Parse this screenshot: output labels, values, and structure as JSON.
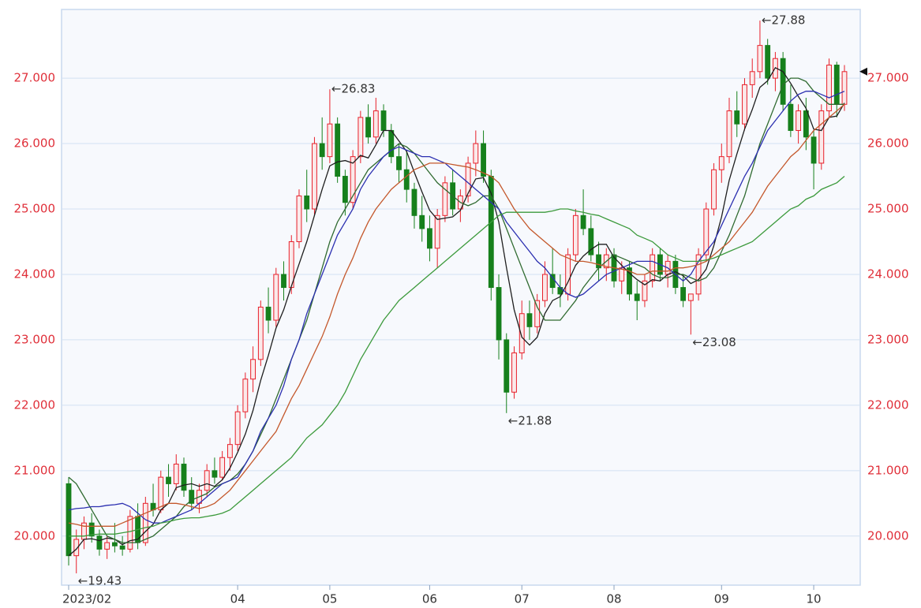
{
  "chart_data": {
    "type": "candlestick",
    "categories": [
      "2023/02",
      null,
      null,
      null,
      null,
      null,
      null,
      null,
      null,
      null,
      null,
      null,
      null,
      null,
      null,
      null,
      null,
      null,
      null,
      null,
      null,
      null,
      "04",
      null,
      null,
      null,
      null,
      null,
      null,
      null,
      null,
      null,
      null,
      null,
      "05",
      null,
      null,
      null,
      null,
      null,
      null,
      null,
      null,
      null,
      null,
      null,
      null,
      "06",
      null,
      null,
      null,
      null,
      null,
      null,
      null,
      null,
      null,
      null,
      null,
      "07",
      null,
      null,
      null,
      null,
      null,
      null,
      null,
      null,
      null,
      null,
      null,
      "08",
      null,
      null,
      null,
      null,
      null,
      null,
      null,
      null,
      null,
      null,
      null,
      null,
      null,
      "09",
      null,
      null,
      null,
      null,
      null,
      null,
      null,
      null,
      null,
      null,
      null,
      "10",
      null,
      null,
      null,
      null
    ],
    "open": [
      20.8,
      19.7,
      19.95,
      20.2,
      20.0,
      19.8,
      19.9,
      19.85,
      19.8,
      20.3,
      19.9,
      20.5,
      20.4,
      20.9,
      20.8,
      21.1,
      20.7,
      20.5,
      20.7,
      21.0,
      20.9,
      21.2,
      21.4,
      21.9,
      22.4,
      22.7,
      23.5,
      23.3,
      24.0,
      23.8,
      24.5,
      25.2,
      25.0,
      26.0,
      25.8,
      26.3,
      25.5,
      25.1,
      25.8,
      26.4,
      26.1,
      26.5,
      26.2,
      25.8,
      25.6,
      25.3,
      24.9,
      24.7,
      24.4,
      24.9,
      25.4,
      25.0,
      25.2,
      25.7,
      26.0,
      25.5,
      23.8,
      23.0,
      22.2,
      22.8,
      23.4,
      23.2,
      23.6,
      24.0,
      23.8,
      23.7,
      24.3,
      24.9,
      24.7,
      24.3,
      24.1,
      24.3,
      23.9,
      24.1,
      23.7,
      23.6,
      23.9,
      24.3,
      24.0,
      24.2,
      23.8,
      23.6,
      23.7,
      24.3,
      25.0,
      25.6,
      25.8,
      26.5,
      26.3,
      26.9,
      27.1,
      27.5,
      27.0,
      27.3,
      26.6,
      26.2,
      26.5,
      26.1,
      25.7,
      26.5,
      27.2,
      26.6
    ],
    "high": [
      20.9,
      20.1,
      20.3,
      20.35,
      20.1,
      20.0,
      20.2,
      20.0,
      20.4,
      20.5,
      20.6,
      20.8,
      21.0,
      21.1,
      21.25,
      21.2,
      20.9,
      20.8,
      21.1,
      21.2,
      21.3,
      21.5,
      22.0,
      22.5,
      22.9,
      23.6,
      23.8,
      24.1,
      24.2,
      24.6,
      25.3,
      25.6,
      26.1,
      26.4,
      26.83,
      26.4,
      25.6,
      25.9,
      26.5,
      26.6,
      26.7,
      26.6,
      26.3,
      26.0,
      25.9,
      25.4,
      25.2,
      24.9,
      25.0,
      25.5,
      25.6,
      25.3,
      25.8,
      26.2,
      26.2,
      25.6,
      24.0,
      23.1,
      22.9,
      23.6,
      23.6,
      23.7,
      24.2,
      24.4,
      24.0,
      24.4,
      25.0,
      25.3,
      24.9,
      24.5,
      24.4,
      24.4,
      24.2,
      24.2,
      23.9,
      24.0,
      24.4,
      24.4,
      24.3,
      24.3,
      24.0,
      23.7,
      24.4,
      25.1,
      25.7,
      26.0,
      26.7,
      26.8,
      27.0,
      27.3,
      27.88,
      27.6,
      27.4,
      27.4,
      26.9,
      26.6,
      26.7,
      26.2,
      26.6,
      27.3,
      27.25,
      27.2
    ],
    "low": [
      19.55,
      19.43,
      19.8,
      19.9,
      19.7,
      19.65,
      19.75,
      19.7,
      19.75,
      19.8,
      19.85,
      20.3,
      20.35,
      20.6,
      20.7,
      20.6,
      20.4,
      20.35,
      20.6,
      20.8,
      20.85,
      21.0,
      21.3,
      21.8,
      22.2,
      22.6,
      23.1,
      23.2,
      23.6,
      23.7,
      24.4,
      24.8,
      24.9,
      25.6,
      25.7,
      25.4,
      24.9,
      25.0,
      25.7,
      26.0,
      26.0,
      26.1,
      25.7,
      25.4,
      25.1,
      24.7,
      24.5,
      24.2,
      24.1,
      24.8,
      24.9,
      24.8,
      25.1,
      25.5,
      25.4,
      23.6,
      22.7,
      21.88,
      22.1,
      22.7,
      23.0,
      23.1,
      23.5,
      23.7,
      23.5,
      23.6,
      24.2,
      24.6,
      24.2,
      23.9,
      23.9,
      23.8,
      23.7,
      23.6,
      23.3,
      23.5,
      23.8,
      23.9,
      23.8,
      23.7,
      23.5,
      23.08,
      23.6,
      24.2,
      24.9,
      25.4,
      25.7,
      26.1,
      26.2,
      26.7,
      27.0,
      26.9,
      26.8,
      26.5,
      26.1,
      26.0,
      25.9,
      25.3,
      25.6,
      26.4,
      26.4,
      26.5
    ],
    "close": [
      19.7,
      19.95,
      20.2,
      20.0,
      19.8,
      19.9,
      19.85,
      19.8,
      20.3,
      19.9,
      20.5,
      20.4,
      20.9,
      20.8,
      21.1,
      20.7,
      20.5,
      20.7,
      21.0,
      20.9,
      21.2,
      21.4,
      21.9,
      22.4,
      22.7,
      23.5,
      23.3,
      24.0,
      23.8,
      24.5,
      25.2,
      25.0,
      26.0,
      25.8,
      26.3,
      25.5,
      25.1,
      25.8,
      26.4,
      26.1,
      26.5,
      26.2,
      25.8,
      25.6,
      25.3,
      24.9,
      24.7,
      24.4,
      24.9,
      25.4,
      25.0,
      25.2,
      25.7,
      26.0,
      25.5,
      23.8,
      23.0,
      22.2,
      22.8,
      23.4,
      23.2,
      23.6,
      24.0,
      23.8,
      23.7,
      24.3,
      24.9,
      24.7,
      24.3,
      24.1,
      24.3,
      23.9,
      24.1,
      23.7,
      23.6,
      23.9,
      24.3,
      24.0,
      24.2,
      23.8,
      23.6,
      23.7,
      24.3,
      25.0,
      25.6,
      25.8,
      26.5,
      26.3,
      26.9,
      27.1,
      27.5,
      27.0,
      27.3,
      26.6,
      26.2,
      26.5,
      26.1,
      25.7,
      26.5,
      27.2,
      26.6,
      27.1
    ],
    "up_color": "#e8202a",
    "down_color": "#16801c",
    "series": [
      {
        "color": "#1e1e1e",
        "values": [
          19.7,
          19.8,
          19.95,
          19.96,
          19.93,
          19.97,
          19.95,
          19.87,
          19.93,
          19.95,
          20.07,
          20.18,
          20.4,
          20.5,
          20.74,
          20.78,
          20.8,
          20.76,
          20.8,
          20.76,
          20.86,
          21.04,
          21.28,
          21.56,
          21.92,
          22.38,
          22.76,
          23.18,
          23.46,
          23.82,
          24.16,
          24.5,
          24.9,
          25.3,
          25.66,
          25.72,
          25.74,
          25.7,
          25.82,
          25.78,
          25.98,
          26.2,
          26.2,
          26.04,
          25.88,
          25.56,
          25.26,
          24.98,
          24.84,
          24.86,
          24.88,
          24.98,
          25.24,
          25.46,
          25.48,
          25.24,
          24.8,
          24.1,
          23.46,
          23.04,
          22.92,
          23.04,
          23.4,
          23.6,
          23.66,
          23.88,
          24.14,
          24.28,
          24.38,
          24.46,
          24.46,
          24.26,
          24.14,
          24.02,
          23.92,
          23.84,
          23.92,
          23.9,
          24.0,
          24.04,
          23.98,
          23.86,
          23.92,
          24.08,
          24.44,
          24.88,
          25.44,
          25.84,
          26.22,
          26.52,
          26.86,
          26.96,
          27.16,
          27.1,
          26.92,
          26.72,
          26.54,
          26.22,
          26.2,
          26.4,
          26.42,
          26.62
        ]
      },
      {
        "color": "#2f6a30",
        "values": [
          20.9,
          20.8,
          20.6,
          20.4,
          20.2,
          20.0,
          19.95,
          19.9,
          19.9,
          19.9,
          19.95,
          20.0,
          20.1,
          20.2,
          20.3,
          20.45,
          20.55,
          20.6,
          20.65,
          20.75,
          20.8,
          20.85,
          20.95,
          21.1,
          21.3,
          21.55,
          21.8,
          22.1,
          22.4,
          22.7,
          23.0,
          23.3,
          23.7,
          24.1,
          24.5,
          24.8,
          25.0,
          25.2,
          25.4,
          25.6,
          25.7,
          25.8,
          25.9,
          26.0,
          25.95,
          25.85,
          25.7,
          25.55,
          25.4,
          25.3,
          25.2,
          25.1,
          25.05,
          25.1,
          25.2,
          25.2,
          25.0,
          24.7,
          24.4,
          24.1,
          23.8,
          23.5,
          23.3,
          23.3,
          23.3,
          23.45,
          23.6,
          23.8,
          23.95,
          24.1,
          24.2,
          24.3,
          24.25,
          24.2,
          24.15,
          24.1,
          24.0,
          23.95,
          23.95,
          24.0,
          24.0,
          23.95,
          23.9,
          23.95,
          24.1,
          24.35,
          24.6,
          24.9,
          25.2,
          25.6,
          26.0,
          26.3,
          26.6,
          26.9,
          27.0,
          27.0,
          26.95,
          26.8,
          26.7,
          26.6,
          26.6,
          26.6
        ]
      },
      {
        "color": "#2b2fb0",
        "values": [
          20.4,
          20.42,
          20.43,
          20.45,
          20.45,
          20.47,
          20.48,
          20.5,
          20.45,
          20.35,
          20.25,
          20.2,
          20.2,
          20.25,
          20.3,
          20.35,
          20.4,
          20.5,
          20.6,
          20.7,
          20.8,
          20.85,
          20.9,
          21.1,
          21.3,
          21.6,
          21.8,
          22.0,
          22.3,
          22.7,
          23.0,
          23.4,
          23.7,
          24.0,
          24.3,
          24.6,
          24.8,
          25.0,
          25.3,
          25.5,
          25.65,
          25.8,
          25.9,
          25.95,
          25.9,
          25.85,
          25.8,
          25.8,
          25.75,
          25.7,
          25.6,
          25.5,
          25.4,
          25.3,
          25.2,
          25.1,
          25.0,
          24.8,
          24.65,
          24.5,
          24.35,
          24.2,
          24.1,
          23.95,
          23.8,
          23.7,
          23.65,
          23.7,
          23.8,
          23.9,
          24.0,
          24.05,
          24.1,
          24.15,
          24.2,
          24.2,
          24.2,
          24.15,
          24.1,
          24.0,
          23.9,
          24.0,
          24.2,
          24.35,
          24.5,
          24.75,
          25.0,
          25.25,
          25.5,
          25.7,
          25.95,
          26.2,
          26.35,
          26.5,
          26.65,
          26.75,
          26.8,
          26.8,
          26.75,
          26.7,
          26.75,
          26.8
        ]
      },
      {
        "color": "#c4582c",
        "values": [
          20.2,
          20.18,
          20.15,
          20.15,
          20.15,
          20.15,
          20.15,
          20.2,
          20.25,
          20.3,
          20.35,
          20.4,
          20.45,
          20.5,
          20.5,
          20.48,
          20.45,
          20.42,
          20.45,
          20.5,
          20.6,
          20.7,
          20.85,
          21.0,
          21.15,
          21.3,
          21.45,
          21.6,
          21.85,
          22.1,
          22.3,
          22.55,
          22.8,
          23.05,
          23.35,
          23.7,
          24.0,
          24.25,
          24.55,
          24.8,
          25.0,
          25.15,
          25.3,
          25.4,
          25.5,
          25.6,
          25.65,
          25.7,
          25.7,
          25.7,
          25.68,
          25.66,
          25.64,
          25.6,
          25.55,
          25.5,
          25.4,
          25.2,
          25.0,
          24.85,
          24.7,
          24.6,
          24.5,
          24.4,
          24.3,
          24.25,
          24.2,
          24.2,
          24.18,
          24.15,
          24.12,
          24.1,
          24.08,
          24.05,
          24.0,
          24.0,
          24.05,
          24.05,
          24.05,
          24.1,
          24.1,
          24.12,
          24.15,
          24.2,
          24.3,
          24.4,
          24.5,
          24.65,
          24.8,
          24.95,
          25.15,
          25.35,
          25.5,
          25.65,
          25.8,
          25.9,
          26.05,
          26.2,
          26.3,
          26.4,
          26.5,
          26.6
        ]
      },
      {
        "color": "#3c9a3c",
        "values": [
          20.0,
          20.0,
          20.0,
          20.02,
          20.03,
          20.03,
          20.03,
          20.05,
          20.07,
          20.1,
          20.13,
          20.15,
          20.2,
          20.22,
          20.25,
          20.27,
          20.28,
          20.28,
          20.3,
          20.32,
          20.35,
          20.4,
          20.5,
          20.6,
          20.7,
          20.8,
          20.9,
          21.0,
          21.1,
          21.2,
          21.35,
          21.5,
          21.6,
          21.7,
          21.85,
          22.0,
          22.2,
          22.45,
          22.7,
          22.9,
          23.1,
          23.3,
          23.45,
          23.6,
          23.7,
          23.8,
          23.9,
          24.0,
          24.1,
          24.2,
          24.3,
          24.4,
          24.5,
          24.6,
          24.7,
          24.8,
          24.9,
          24.95,
          24.95,
          24.95,
          24.95,
          24.95,
          24.95,
          24.97,
          25.0,
          25.0,
          24.97,
          24.95,
          24.92,
          24.9,
          24.85,
          24.8,
          24.75,
          24.7,
          24.6,
          24.55,
          24.5,
          24.4,
          24.3,
          24.25,
          24.2,
          24.2,
          24.2,
          24.22,
          24.25,
          24.3,
          24.35,
          24.4,
          24.45,
          24.5,
          24.6,
          24.7,
          24.8,
          24.9,
          25.0,
          25.05,
          25.15,
          25.2,
          25.3,
          25.35,
          25.4,
          25.5
        ]
      }
    ],
    "annotations": [
      {
        "label": "←27.88",
        "value": 27.88
      },
      {
        "label": "←26.83",
        "value": 26.83
      },
      {
        "label": "←21.88",
        "value": 21.88
      },
      {
        "label": "←23.08",
        "value": 23.08
      },
      {
        "label": "←19.43",
        "value": 19.43
      }
    ],
    "ylim": [
      19.25,
      28.05
    ],
    "yticks": [
      {
        "value": 20,
        "label": "20.000"
      },
      {
        "value": 21,
        "label": "21.000"
      },
      {
        "value": 22,
        "label": "22.000"
      },
      {
        "value": 23,
        "label": "23.000"
      },
      {
        "value": 24,
        "label": "24.000"
      },
      {
        "value": 25,
        "label": "25.000"
      },
      {
        "value": 26,
        "label": "26.000"
      },
      {
        "value": 27,
        "label": "27.000"
      }
    ],
    "tick_label_color": "#e0303a",
    "grid": true
  }
}
